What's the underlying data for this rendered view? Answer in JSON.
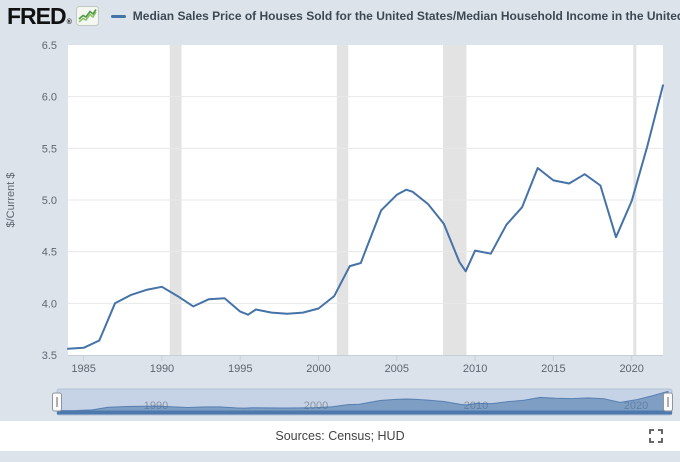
{
  "header": {
    "logo_text": "FRED",
    "registered_mark": "®"
  },
  "theme": {
    "page_bg": "#dde3ea",
    "plot_bg": "#ffffff",
    "grid_color": "#e8e8e8",
    "recession_band_color": "#e3e3e3",
    "line_color": "#4572a7",
    "axis_text_color": "#5d6570",
    "axis_line_color": "#c9ced6",
    "legend_text_color": "#3c4854",
    "logo_color": "#111111",
    "sparkline_green_dark": "#4c9b41",
    "sparkline_green_light": "#8fc26a",
    "slider_track_bg": "#c6d3e7",
    "slider_track_border": "#b3c1d6",
    "slider_area_fill": "rgba(69,114,167,0.55)",
    "slider_baseline_color": "#4e79ad",
    "slider_label_color": "#8a93a0",
    "handle_fill": "#fbfbfb",
    "handle_border": "#8e959e",
    "footer_text_color": "#444444",
    "icon_color": "#555555"
  },
  "chart_data": {
    "type": "line",
    "title": "Median Sales Price of Houses Sold for the United States/Median Household Income in the United States",
    "ylabel": "$/Current $",
    "xlabel": "",
    "xlim": [
      1984,
      2022
    ],
    "ylim": [
      3.5,
      6.5
    ],
    "x_ticks": [
      1985,
      1990,
      1995,
      2000,
      2005,
      2010,
      2015,
      2020
    ],
    "y_ticks": [
      3.5,
      4.0,
      4.5,
      5.0,
      5.5,
      6.0,
      6.5
    ],
    "y_tick_labels": [
      "3.5",
      "4.0",
      "4.5",
      "5.0",
      "5.5",
      "6.0",
      "6.5"
    ],
    "grid": "horizontal-only",
    "legend_position": "top",
    "recession_bands": [
      [
        1990.5,
        1991.25
      ],
      [
        2001.17,
        2001.9
      ],
      [
        2007.95,
        2009.45
      ],
      [
        2020.1,
        2020.3
      ]
    ],
    "series": [
      {
        "points": [
          [
            1984,
            3.56
          ],
          [
            1985,
            3.57
          ],
          [
            1986,
            3.64
          ],
          [
            1987,
            4.0
          ],
          [
            1988,
            4.08
          ],
          [
            1989,
            4.13
          ],
          [
            1990,
            4.16
          ],
          [
            1991,
            4.07
          ],
          [
            1992,
            3.97
          ],
          [
            1993,
            4.04
          ],
          [
            1994,
            4.05
          ],
          [
            1995,
            3.92
          ],
          [
            1995.5,
            3.89
          ],
          [
            1996,
            3.94
          ],
          [
            1997,
            3.91
          ],
          [
            1998,
            3.9
          ],
          [
            1999,
            3.91
          ],
          [
            2000,
            3.95
          ],
          [
            2001,
            4.07
          ],
          [
            2002,
            4.36
          ],
          [
            2002.7,
            4.39
          ],
          [
            2003,
            4.51
          ],
          [
            2004,
            4.9
          ],
          [
            2005,
            5.05
          ],
          [
            2005.6,
            5.1
          ],
          [
            2006,
            5.08
          ],
          [
            2007,
            4.96
          ],
          [
            2008,
            4.77
          ],
          [
            2009,
            4.4
          ],
          [
            2009.4,
            4.31
          ],
          [
            2010,
            4.51
          ],
          [
            2011,
            4.48
          ],
          [
            2012,
            4.76
          ],
          [
            2013,
            4.93
          ],
          [
            2014,
            5.31
          ],
          [
            2015,
            5.19
          ],
          [
            2016,
            5.16
          ],
          [
            2017,
            5.25
          ],
          [
            2018,
            5.14
          ],
          [
            2019,
            4.64
          ],
          [
            2020,
            4.99
          ],
          [
            2021,
            5.52
          ],
          [
            2022,
            6.11
          ]
        ]
      }
    ]
  },
  "slider": {
    "decade_labels": [
      "1990",
      "2000",
      "2010",
      "2020"
    ]
  },
  "footer": {
    "sources": "Sources: Census; HUD"
  }
}
